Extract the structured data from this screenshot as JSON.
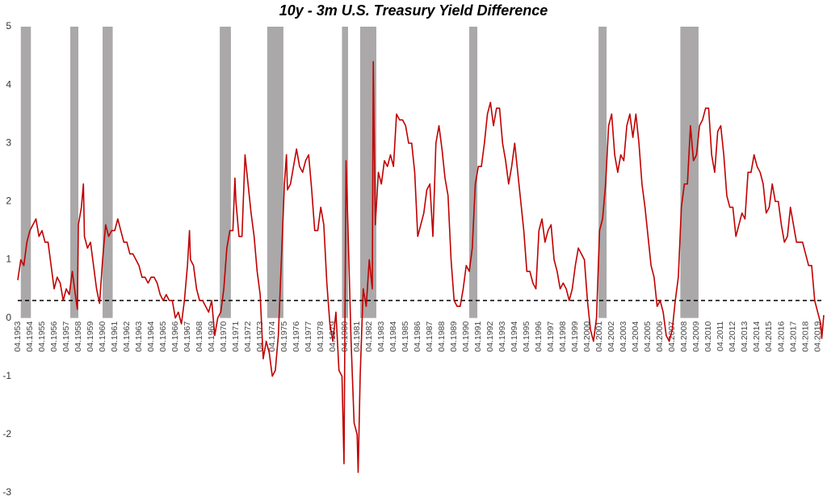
{
  "chart_data": {
    "type": "line",
    "title": "10y - 3m U.S. Treasury Yield Difference",
    "x": [
      "04.1953",
      "07.1953",
      "10.1953",
      "01.1954",
      "04.1954",
      "07.1954",
      "10.1954",
      "01.1955",
      "04.1955",
      "07.1955",
      "10.1955",
      "01.1956",
      "04.1956",
      "07.1956",
      "10.1956",
      "01.1957",
      "04.1957",
      "07.1957",
      "10.1957",
      "01.1958",
      "03.1958",
      "04.1958",
      "07.1958",
      "09.1958",
      "10.1958",
      "01.1959",
      "04.1959",
      "07.1959",
      "10.1959",
      "01.1960",
      "04.1960",
      "07.1960",
      "10.1960",
      "01.1961",
      "04.1961",
      "07.1961",
      "10.1961",
      "01.1962",
      "04.1962",
      "07.1962",
      "10.1962",
      "01.1963",
      "04.1963",
      "07.1963",
      "10.1963",
      "01.1964",
      "04.1964",
      "07.1964",
      "10.1964",
      "01.1965",
      "04.1965",
      "07.1965",
      "10.1965",
      "01.1966",
      "04.1966",
      "07.1966",
      "10.1966",
      "01.1967",
      "04.1967",
      "06.1967",
      "07.1967",
      "10.1967",
      "01.1968",
      "04.1968",
      "07.1968",
      "10.1968",
      "01.1969",
      "04.1969",
      "07.1969",
      "10.1969",
      "01.1970",
      "04.1970",
      "07.1970",
      "10.1970",
      "01.1971",
      "03.1971",
      "04.1971",
      "07.1971",
      "10.1971",
      "01.1972",
      "04.1972",
      "07.1972",
      "10.1972",
      "01.1973",
      "04.1973",
      "07.1973",
      "10.1973",
      "01.1974",
      "04.1974",
      "07.1974",
      "10.1974",
      "01.1975",
      "04.1975",
      "06.1975",
      "07.1975",
      "10.1975",
      "01.1976",
      "04.1976",
      "07.1976",
      "10.1976",
      "01.1977",
      "04.1977",
      "07.1977",
      "10.1977",
      "01.1978",
      "04.1978",
      "07.1978",
      "10.1978",
      "01.1979",
      "04.1979",
      "07.1979",
      "10.1979",
      "01.1980",
      "03.1980",
      "05.1980",
      "07.1980",
      "10.1980",
      "01.1981",
      "04.1981",
      "05.1981",
      "07.1981",
      "10.1981",
      "01.1982",
      "04.1982",
      "07.1982",
      "08.1982",
      "10.1982",
      "01.1983",
      "04.1983",
      "07.1983",
      "10.1983",
      "01.1984",
      "04.1984",
      "07.1984",
      "10.1984",
      "01.1985",
      "04.1985",
      "07.1985",
      "10.1985",
      "01.1986",
      "04.1986",
      "07.1986",
      "10.1986",
      "01.1987",
      "04.1987",
      "07.1987",
      "10.1987",
      "01.1988",
      "04.1988",
      "07.1988",
      "10.1988",
      "01.1989",
      "04.1989",
      "07.1989",
      "10.1989",
      "01.1990",
      "04.1990",
      "07.1990",
      "10.1990",
      "01.1991",
      "04.1991",
      "07.1991",
      "10.1991",
      "01.1992",
      "04.1992",
      "07.1992",
      "10.1992",
      "01.1993",
      "04.1993",
      "07.1993",
      "10.1993",
      "01.1994",
      "04.1994",
      "07.1994",
      "10.1994",
      "01.1995",
      "04.1995",
      "07.1995",
      "10.1995",
      "01.1996",
      "04.1996",
      "07.1996",
      "10.1996",
      "01.1997",
      "04.1997",
      "07.1997",
      "10.1997",
      "01.1998",
      "04.1998",
      "07.1998",
      "10.1998",
      "01.1999",
      "04.1999",
      "07.1999",
      "10.1999",
      "01.2000",
      "04.2000",
      "07.2000",
      "10.2000",
      "01.2001",
      "04.2001",
      "07.2001",
      "10.2001",
      "01.2002",
      "04.2002",
      "07.2002",
      "10.2002",
      "01.2003",
      "04.2003",
      "07.2003",
      "10.2003",
      "01.2004",
      "04.2004",
      "07.2004",
      "10.2004",
      "01.2005",
      "04.2005",
      "07.2005",
      "10.2005",
      "01.2006",
      "04.2006",
      "07.2006",
      "10.2006",
      "01.2007",
      "04.2007",
      "07.2007",
      "10.2007",
      "01.2008",
      "04.2008",
      "07.2008",
      "10.2008",
      "01.2009",
      "04.2009",
      "07.2009",
      "10.2009",
      "01.2010",
      "04.2010",
      "07.2010",
      "10.2010",
      "01.2011",
      "04.2011",
      "07.2011",
      "10.2011",
      "01.2012",
      "04.2012",
      "07.2012",
      "10.2012",
      "01.2013",
      "04.2013",
      "07.2013",
      "10.2013",
      "01.2014",
      "04.2014",
      "07.2014",
      "10.2014",
      "01.2015",
      "04.2015",
      "07.2015",
      "10.2015",
      "01.2016",
      "04.2016",
      "07.2016",
      "10.2016",
      "01.2017",
      "04.2017",
      "07.2017",
      "10.2017",
      "01.2018",
      "04.2018",
      "07.2018",
      "10.2018",
      "01.2019",
      "04.2019",
      "07.2019",
      "08.2019",
      "10.2019"
    ],
    "series": [
      {
        "name": "10y - 3m",
        "color": "#c00000",
        "values": [
          0.65,
          1.0,
          0.9,
          1.3,
          1.5,
          1.6,
          1.7,
          1.4,
          1.5,
          1.3,
          1.3,
          0.9,
          0.5,
          0.7,
          0.6,
          0.3,
          0.5,
          0.4,
          0.8,
          0.4,
          0.15,
          1.6,
          1.9,
          2.3,
          1.4,
          1.2,
          1.3,
          0.9,
          0.5,
          0.25,
          1.0,
          1.6,
          1.4,
          1.5,
          1.5,
          1.7,
          1.5,
          1.3,
          1.3,
          1.1,
          1.1,
          1.0,
          0.9,
          0.7,
          0.7,
          0.6,
          0.7,
          0.7,
          0.6,
          0.4,
          0.3,
          0.4,
          0.3,
          0.3,
          0.0,
          0.1,
          -0.1,
          0.3,
          0.9,
          1.5,
          1.0,
          0.9,
          0.5,
          0.3,
          0.3,
          0.2,
          0.1,
          0.3,
          -0.3,
          0.0,
          0.1,
          0.5,
          1.2,
          1.5,
          1.5,
          2.4,
          2.0,
          1.4,
          1.4,
          2.8,
          2.3,
          1.8,
          1.4,
          0.8,
          0.4,
          -0.7,
          -0.4,
          -0.6,
          -1.0,
          -0.9,
          -0.3,
          1.0,
          2.3,
          2.8,
          2.2,
          2.3,
          2.6,
          2.9,
          2.6,
          2.5,
          2.7,
          2.8,
          2.2,
          1.5,
          1.5,
          1.9,
          1.6,
          0.6,
          -0.1,
          -0.4,
          0.1,
          -0.9,
          -1.0,
          -2.5,
          2.7,
          1.5,
          -0.4,
          -1.8,
          -2.0,
          -2.65,
          -1.0,
          0.5,
          0.2,
          1.0,
          0.5,
          4.4,
          1.6,
          2.5,
          2.3,
          2.7,
          2.6,
          2.8,
          2.6,
          3.5,
          3.4,
          3.4,
          3.3,
          3.0,
          3.0,
          2.5,
          1.4,
          1.6,
          1.8,
          2.2,
          2.3,
          1.4,
          3.0,
          3.3,
          2.9,
          2.4,
          2.1,
          1.0,
          0.3,
          0.2,
          0.2,
          0.5,
          0.9,
          0.8,
          1.2,
          2.3,
          2.6,
          2.6,
          3.0,
          3.5,
          3.7,
          3.3,
          3.6,
          3.6,
          3.0,
          2.7,
          2.3,
          2.6,
          3.0,
          2.5,
          2.0,
          1.5,
          0.8,
          0.8,
          0.6,
          0.5,
          1.5,
          1.7,
          1.3,
          1.5,
          1.6,
          1.0,
          0.8,
          0.5,
          0.6,
          0.5,
          0.3,
          0.5,
          0.9,
          1.2,
          1.1,
          1.0,
          0.3,
          -0.2,
          -0.4,
          0.0,
          1.5,
          1.7,
          2.3,
          3.3,
          3.5,
          2.8,
          2.5,
          2.8,
          2.7,
          3.3,
          3.5,
          3.1,
          3.5,
          3.0,
          2.3,
          1.9,
          1.4,
          0.9,
          0.7,
          0.2,
          0.3,
          0.1,
          -0.3,
          -0.4,
          -0.2,
          0.3,
          0.7,
          1.9,
          2.3,
          2.3,
          3.3,
          2.7,
          2.8,
          3.3,
          3.4,
          3.6,
          3.6,
          2.8,
          2.5,
          3.2,
          3.3,
          2.8,
          2.1,
          1.9,
          1.9,
          1.4,
          1.6,
          1.8,
          1.7,
          2.5,
          2.5,
          2.8,
          2.6,
          2.5,
          2.3,
          1.8,
          1.9,
          2.3,
          2.0,
          2.0,
          1.6,
          1.3,
          1.4,
          1.9,
          1.6,
          1.3,
          1.3,
          1.3,
          1.1,
          0.9,
          0.9,
          0.3,
          0.1,
          -0.1,
          -0.35,
          0.05
        ]
      }
    ],
    "xlim": [
      "04.1953",
      "10.2019"
    ],
    "xticks": [
      "04.1953",
      "04.1954",
      "04.1955",
      "04.1956",
      "04.1957",
      "04.1958",
      "04.1959",
      "04.1960",
      "04.1961",
      "04.1962",
      "04.1963",
      "04.1964",
      "04.1965",
      "04.1966",
      "04.1967",
      "04.1968",
      "04.1969",
      "04.1970",
      "04.1971",
      "04.1972",
      "04.1973",
      "04.1974",
      "04.1975",
      "04.1976",
      "04.1977",
      "04.1978",
      "04.1979",
      "04.1980",
      "04.1981",
      "04.1982",
      "04.1983",
      "04.1984",
      "04.1985",
      "04.1986",
      "04.1987",
      "04.1988",
      "04.1989",
      "04.1990",
      "04.1991",
      "04.1992",
      "04.1993",
      "04.1994",
      "04.1995",
      "04.1996",
      "04.1997",
      "04.1998",
      "04.1999",
      "04.2000",
      "04.2001",
      "04.2002",
      "04.2003",
      "04.2004",
      "04.2005",
      "04.2006",
      "04.2007",
      "04.2008",
      "04.2009",
      "04.2010",
      "04.2011",
      "04.2012",
      "04.2013",
      "04.2014",
      "04.2015",
      "04.2016",
      "04.2017",
      "04.2018",
      "04.2019"
    ],
    "ylim": [
      -3,
      5
    ],
    "yticks": [
      -3,
      -2,
      -1,
      0,
      1,
      2,
      3,
      4,
      5
    ],
    "recessions": [
      [
        "07.1953",
        "05.1954"
      ],
      [
        "08.1957",
        "04.1958"
      ],
      [
        "04.1960",
        "02.1961"
      ],
      [
        "12.1969",
        "11.1970"
      ],
      [
        "11.1973",
        "03.1975"
      ],
      [
        "01.1980",
        "07.1980"
      ],
      [
        "07.1981",
        "11.1982"
      ],
      [
        "07.1990",
        "03.1991"
      ],
      [
        "03.2001",
        "11.2001"
      ],
      [
        "12.2007",
        "06.2009"
      ]
    ],
    "recession_color": "#aaa8a8",
    "threshold": 0.3,
    "grid": false
  }
}
